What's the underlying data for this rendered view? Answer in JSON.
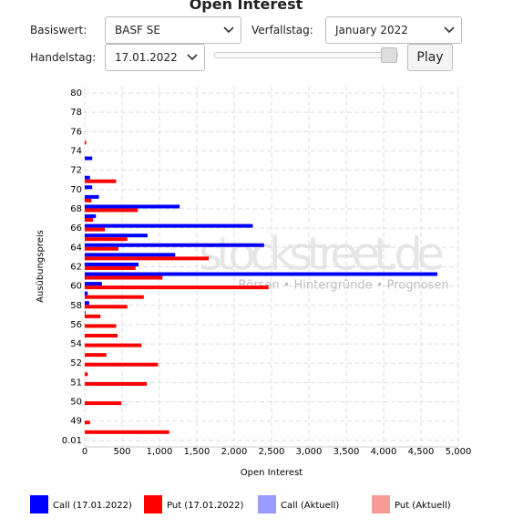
{
  "controls": {
    "basiswert_label": "Basiswert:",
    "basiswert": "BASF SE",
    "verfallstag_label": "Verfallstag:",
    "verfallstag": "January 2022",
    "handelstag_label": "Handelstag:",
    "handelstag": "17.01.2022",
    "play": "Play"
  },
  "chart_data": {
    "type": "hbar",
    "title": "Open Interest",
    "x_label": "Open Interest",
    "y_label": "Ausübungspreis",
    "watermark": "stockstreet.de",
    "watermark_tagline": "Börsen • Hintergründe • Prognosen",
    "categories": [
      "80",
      null,
      "78",
      null,
      "76",
      null,
      "74",
      null,
      "72",
      null,
      "70",
      null,
      "68",
      null,
      "66",
      null,
      "64",
      null,
      "62",
      null,
      "60",
      null,
      "58",
      null,
      "56",
      null,
      "54",
      null,
      "52",
      null,
      "51",
      null,
      "50",
      null,
      "49",
      null,
      "0.01"
    ],
    "series": [
      {
        "name": "Call (17.01.2022)",
        "color": "#0000ff",
        "values": [
          0,
          0,
          0,
          0,
          0,
          0,
          0,
          100,
          0,
          70,
          100,
          190,
          1270,
          150,
          2250,
          840,
          2400,
          1210,
          720,
          4720,
          230,
          40,
          60,
          10,
          0,
          0,
          0,
          0,
          0,
          0,
          0,
          0,
          0,
          0,
          0,
          0,
          0
        ]
      },
      {
        "name": "Put (17.01.2022)",
        "color": "#ff0000",
        "values": [
          0,
          0,
          0,
          0,
          0,
          20,
          0,
          0,
          0,
          420,
          0,
          90,
          710,
          110,
          270,
          570,
          450,
          1660,
          680,
          1040,
          2460,
          790,
          570,
          210,
          420,
          440,
          760,
          290,
          980,
          40,
          830,
          0,
          490,
          0,
          70,
          1130,
          0
        ]
      },
      {
        "name": "Call (Aktuell)",
        "color": "#9999ff",
        "values": [
          0,
          0,
          0,
          0,
          0,
          0,
          0,
          0,
          0,
          0,
          0,
          0,
          0,
          0,
          0,
          0,
          0,
          0,
          0,
          0,
          0,
          0,
          0,
          0,
          0,
          0,
          0,
          0,
          0,
          0,
          0,
          0,
          0,
          0,
          0,
          0,
          0
        ]
      },
      {
        "name": "Put (Aktuell)",
        "color": "#f99999",
        "values": [
          0,
          0,
          0,
          0,
          0,
          0,
          0,
          0,
          0,
          0,
          0,
          0,
          0,
          0,
          0,
          0,
          0,
          0,
          0,
          0,
          0,
          0,
          0,
          0,
          0,
          0,
          0,
          0,
          0,
          0,
          0,
          0,
          0,
          0,
          0,
          0,
          0
        ]
      }
    ],
    "xlim": [
      0,
      5000
    ],
    "xticks": [
      0,
      500,
      {
        "value": 1000,
        "label": "1,000"
      },
      {
        "value": 1500,
        "label": "1,500"
      },
      {
        "value": 2000,
        "label": "2,000"
      },
      {
        "value": 2500,
        "label": "2,500"
      },
      {
        "value": 3000,
        "label": "3,000"
      },
      {
        "value": 3500,
        "label": "3,500"
      },
      {
        "value": 4000,
        "label": "4,000"
      },
      {
        "value": 4500,
        "label": "4,500"
      },
      {
        "value": 5000,
        "label": "5,000"
      }
    ],
    "grid": true,
    "legend": "bottom"
  }
}
